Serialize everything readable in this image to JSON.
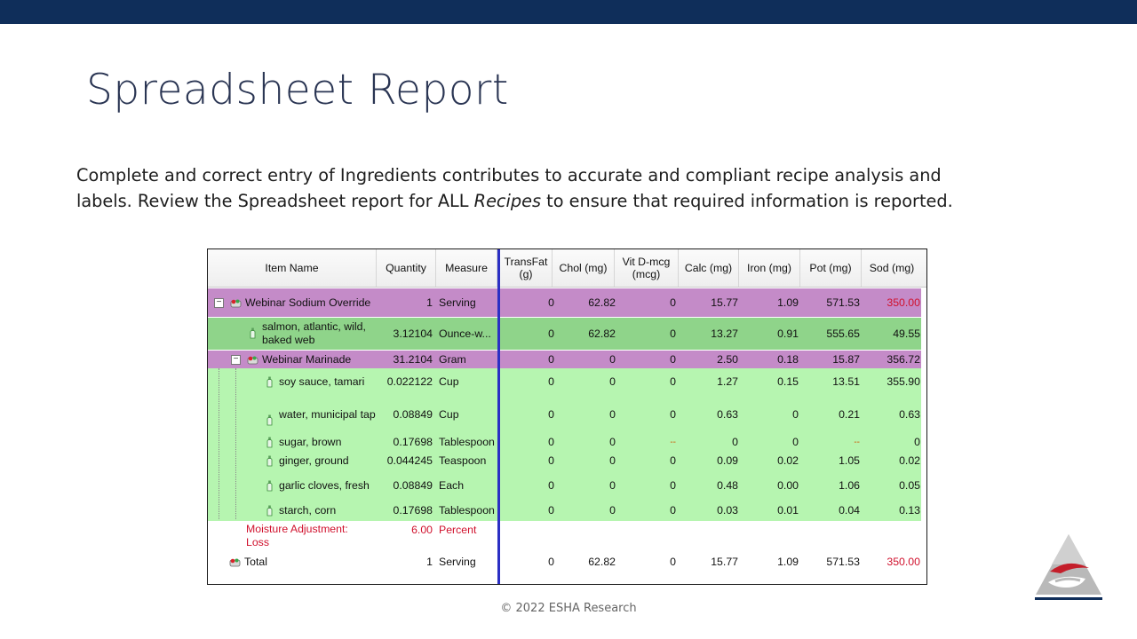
{
  "slide": {
    "title": "Spreadsheet Report",
    "body_line1": "Complete and correct entry of Ingredients contributes to accurate and compliant recipe analysis and",
    "body_line2_pre": "labels. Review the Spreadsheet report for ALL ",
    "body_line2_em": "Recipes",
    "body_line2_post": " to ensure that required information is reported.",
    "copyright": "© 2022 ESHA Research"
  },
  "spreadsheet": {
    "columns": {
      "item_name": "Item Name",
      "quantity": "Quantity",
      "measure": "Measure",
      "transfat_1": "TransFat",
      "transfat_2": "(g)",
      "chol": "Chol (mg)",
      "vitd_1": "Vit D-mcg",
      "vitd_2": "(mcg)",
      "calc": "Calc (mg)",
      "iron": "Iron (mg)",
      "pot": "Pot (mg)",
      "sod": "Sod (mg)"
    },
    "rows": [
      {
        "name": "Webinar Sodium Override",
        "qty": "1",
        "measure": "Serving",
        "transfat": "0",
        "chol": "62.82",
        "vitd": "0",
        "calc": "15.77",
        "iron": "1.09",
        "pot": "571.53",
        "sod": "350.00"
      },
      {
        "name": "salmon, atlantic, wild, baked web",
        "qty": "3.12104",
        "measure": "Ounce-w...",
        "transfat": "0",
        "chol": "62.82",
        "vitd": "0",
        "calc": "13.27",
        "iron": "0.91",
        "pot": "555.65",
        "sod": "49.55"
      },
      {
        "name": "Webinar Marinade",
        "qty": "31.2104",
        "measure": "Gram",
        "transfat": "0",
        "chol": "0",
        "vitd": "0",
        "calc": "2.50",
        "iron": "0.18",
        "pot": "15.87",
        "sod": "356.72"
      },
      {
        "name": "soy sauce, tamari",
        "qty": "0.022122",
        "measure": "Cup",
        "transfat": "0",
        "chol": "0",
        "vitd": "0",
        "calc": "1.27",
        "iron": "0.15",
        "pot": "13.51",
        "sod": "355.90"
      },
      {
        "name": "water, municipal tap",
        "qty": "0.08849",
        "measure": "Cup",
        "transfat": "0",
        "chol": "0",
        "vitd": "0",
        "calc": "0.63",
        "iron": "0",
        "pot": "0.21",
        "sod": "0.63"
      },
      {
        "name": "sugar, brown",
        "qty": "0.17698",
        "measure": "Tablespoon",
        "transfat": "0",
        "chol": "0",
        "vitd": "--",
        "calc": "0",
        "iron": "0",
        "pot": "--",
        "sod": "0"
      },
      {
        "name": "ginger, ground",
        "qty": "0.044245",
        "measure": "Teaspoon",
        "transfat": "0",
        "chol": "0",
        "vitd": "0",
        "calc": "0.09",
        "iron": "0.02",
        "pot": "1.05",
        "sod": "0.02"
      },
      {
        "name": "garlic cloves, fresh",
        "qty": "0.08849",
        "measure": "Each",
        "transfat": "0",
        "chol": "0",
        "vitd": "0",
        "calc": "0.48",
        "iron": "0.00",
        "pot": "1.06",
        "sod": "0.05"
      },
      {
        "name": "starch, corn",
        "qty": "0.17698",
        "measure": "Tablespoon",
        "transfat": "0",
        "chol": "0",
        "vitd": "0",
        "calc": "0.03",
        "iron": "0.01",
        "pot": "0.04",
        "sod": "0.13"
      }
    ],
    "moisture": {
      "name": "Moisture Adjustment: Loss",
      "qty": "6.00",
      "measure": "Percent"
    },
    "total": {
      "name": "Total",
      "qty": "1",
      "measure": "Serving",
      "transfat": "0",
      "chol": "62.82",
      "vitd": "0",
      "calc": "15.77",
      "iron": "1.09",
      "pot": "571.53",
      "sod": "350.00"
    },
    "colors": {
      "recipe_row": "#c48bc8",
      "ingredient_row": "#b6f5b0",
      "selected_row": "#8fd48a",
      "highlight_text": "#d0102c",
      "freeze_line": "#2b2fc4"
    }
  }
}
